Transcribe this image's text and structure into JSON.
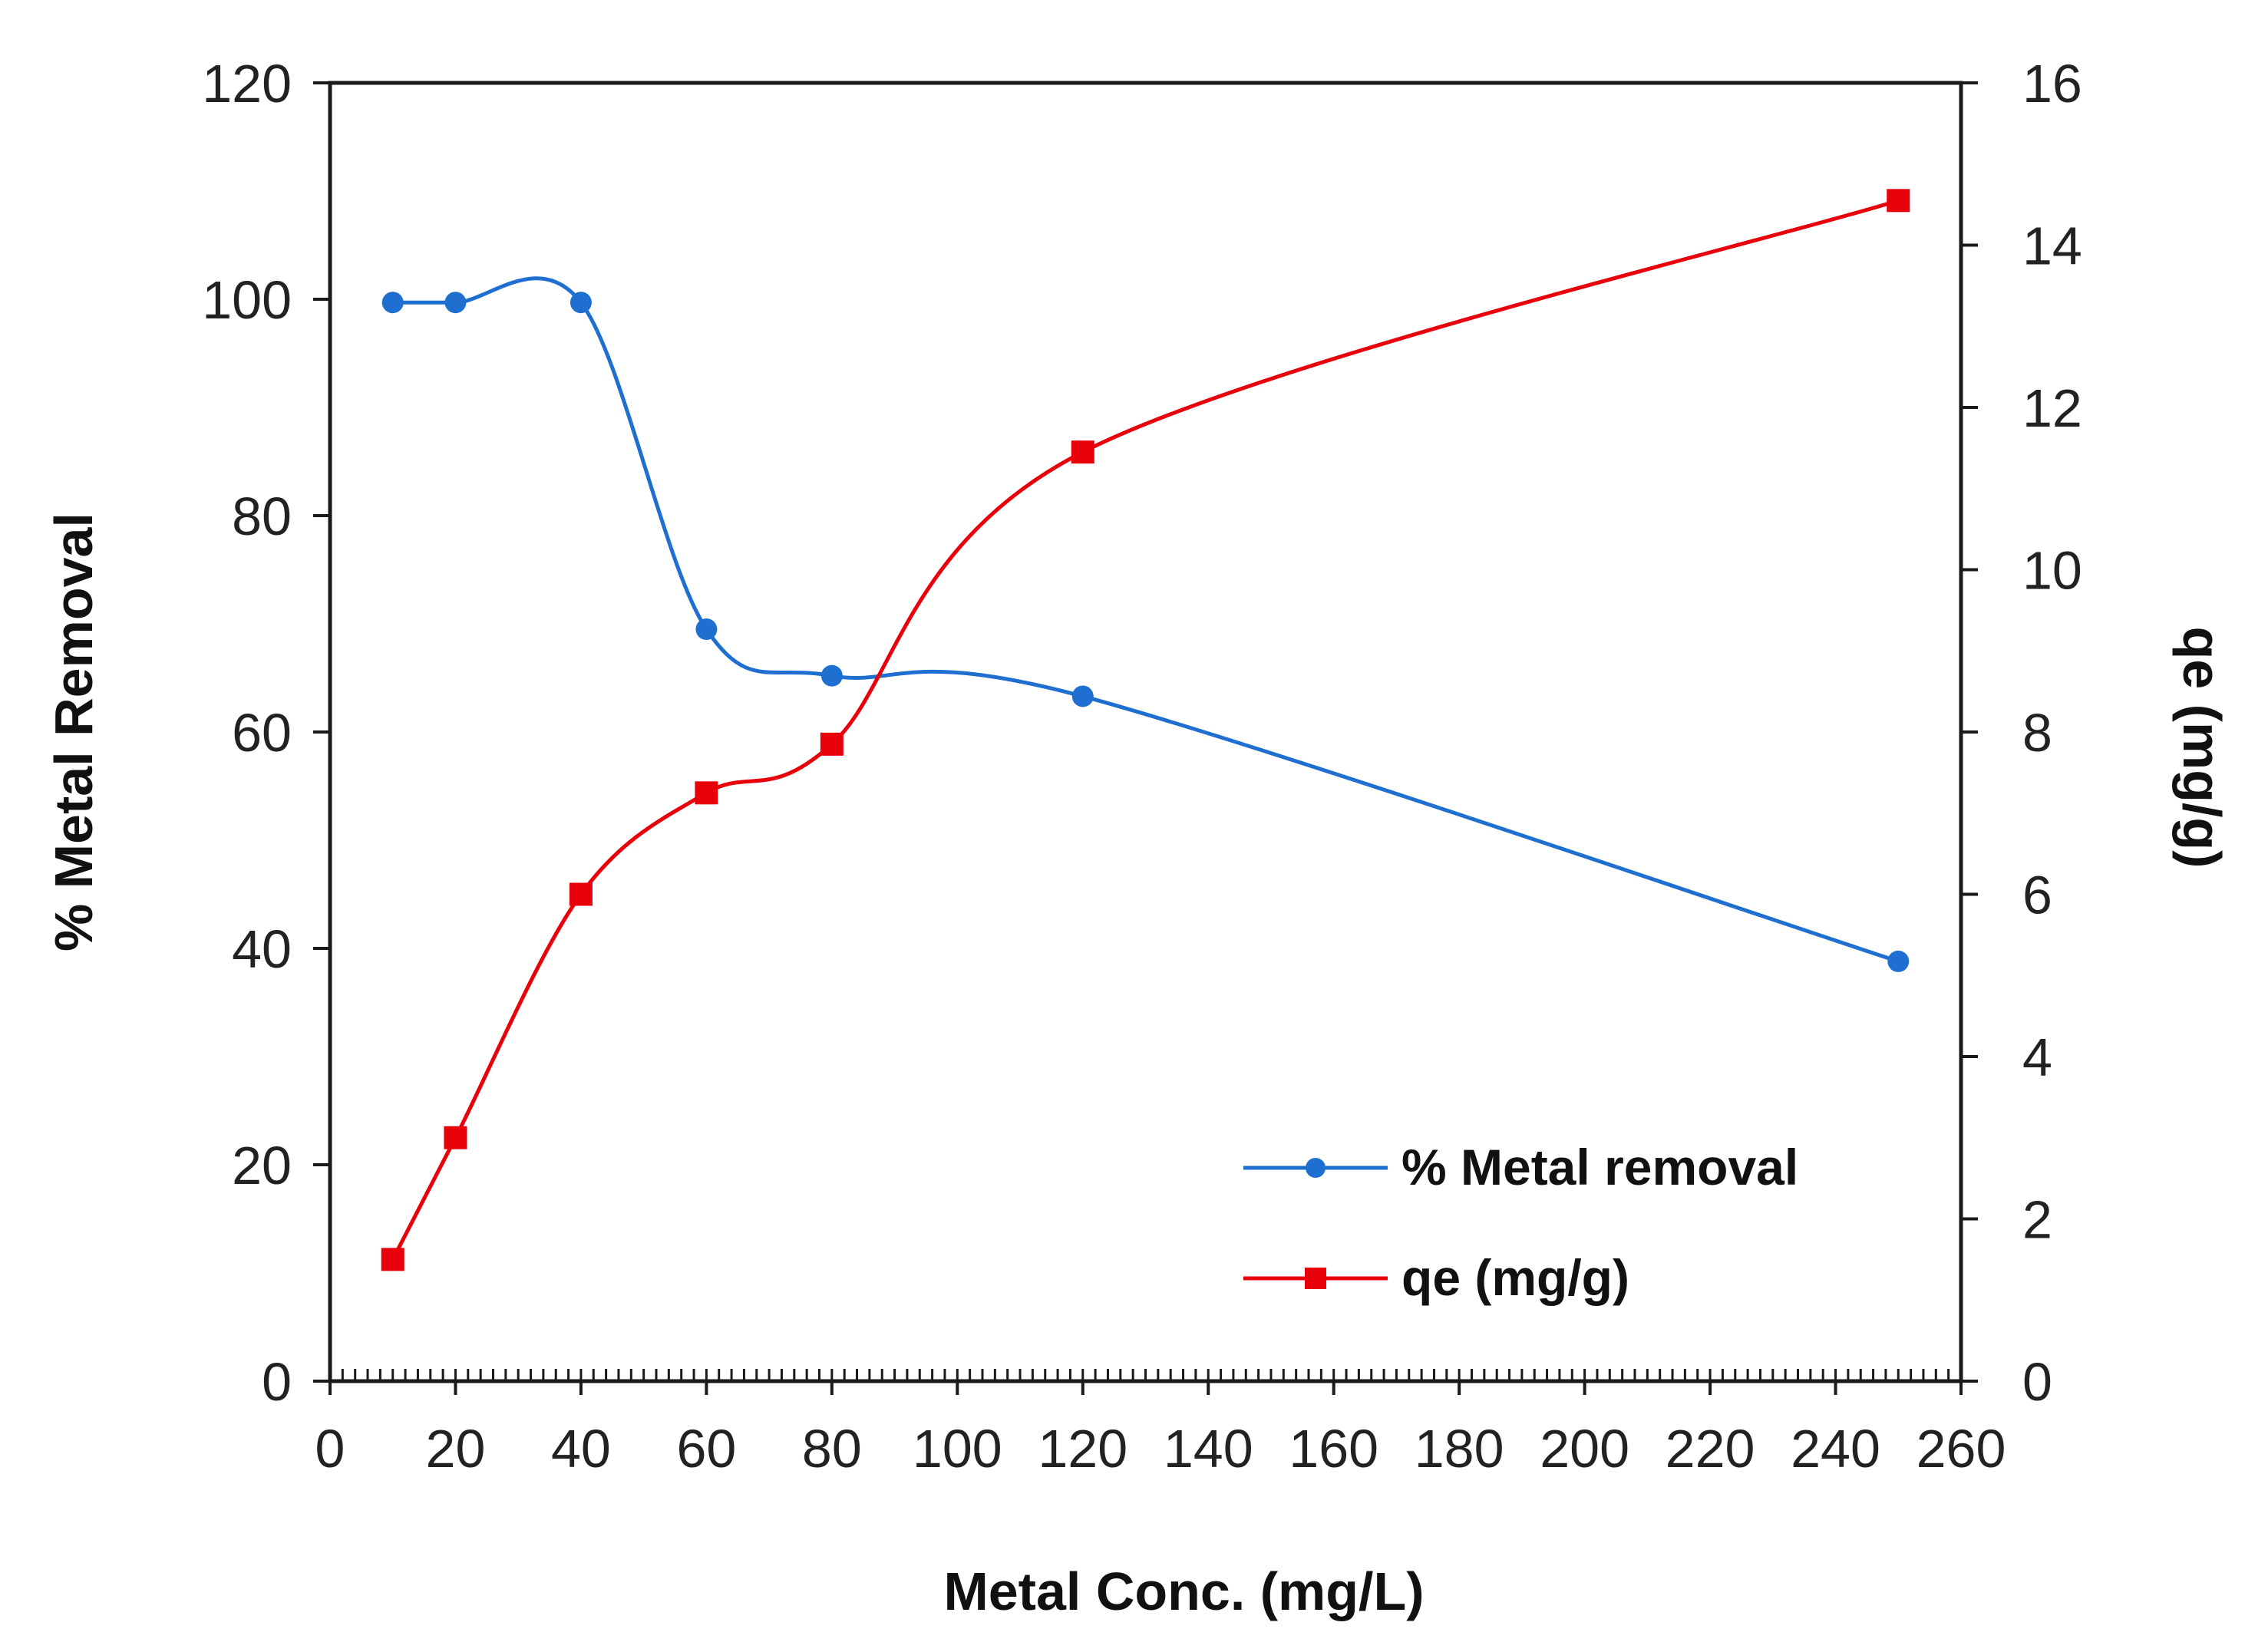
{
  "chart_data": {
    "type": "line",
    "title": "",
    "xlabel": "Metal Conc. (mg/L)",
    "ylabel": "% Metal Removal",
    "y2label": "qe (mg/g)",
    "xlim": [
      0,
      260
    ],
    "ylim": [
      0,
      120
    ],
    "y2lim": [
      0,
      16
    ],
    "x_ticks": [
      0,
      20,
      40,
      60,
      80,
      100,
      120,
      140,
      160,
      180,
      200,
      220,
      240,
      260
    ],
    "x_tick_labels": [
      "0",
      "20",
      "40",
      "60",
      "80",
      "100",
      "120",
      "140",
      "160",
      "180",
      "200",
      "220",
      "240",
      "260"
    ],
    "y_ticks": [
      0,
      20,
      40,
      60,
      80,
      100,
      120
    ],
    "y_tick_labels": [
      "0",
      "20",
      "40",
      "60",
      "80",
      "100",
      "120"
    ],
    "y2_ticks": [
      0,
      2,
      4,
      6,
      8,
      10,
      12,
      14,
      16
    ],
    "y2_tick_labels": [
      "0",
      "2",
      "4",
      "6",
      "8",
      "10",
      "12",
      "14",
      "16"
    ],
    "grid": false,
    "legend_position": "bottom-right",
    "series": [
      {
        "name": "% Metal removal",
        "axis": "left",
        "color": "#1f6fd1",
        "marker": "circle",
        "x": [
          10,
          20,
          40,
          60,
          80,
          120,
          250
        ],
        "values": [
          99.7,
          99.7,
          99.7,
          69.5,
          65.2,
          63.3,
          38.8
        ]
      },
      {
        "name": "qe (mg/g)",
        "axis": "right",
        "color": "#e8000b",
        "marker": "square",
        "x": [
          10,
          20,
          40,
          60,
          80,
          120,
          250
        ],
        "values": [
          1.5,
          3.0,
          6.0,
          7.25,
          7.85,
          11.45,
          14.55
        ]
      }
    ]
  }
}
